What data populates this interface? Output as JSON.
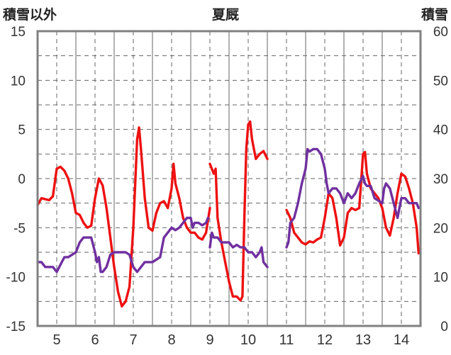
{
  "header": {
    "left_axis_title": "積雪以外",
    "center_title": "夏厩",
    "right_axis_title": "積雪"
  },
  "chart_data": {
    "type": "line",
    "title": "夏厩",
    "ylabel_left": "積雪以外",
    "ylabel_right": "積雪",
    "y_left_range": [
      -15,
      15
    ],
    "y_left_ticks": [
      15,
      10,
      5,
      0,
      -5,
      -10,
      -15
    ],
    "y_right_range": [
      0,
      60
    ],
    "y_right_ticks": [
      60,
      50,
      40,
      30,
      20,
      10,
      0
    ],
    "x_range": [
      4.5,
      14.5
    ],
    "x_ticks": [
      5,
      6,
      7,
      8,
      9,
      10,
      11,
      12,
      13,
      14
    ],
    "x_tick_labels": [
      "5",
      "6",
      "7",
      "8",
      "9",
      "10",
      "11",
      "12",
      "13",
      "14"
    ],
    "grid": true,
    "colors": {
      "red": "#ee1111",
      "purple": "#7030a0",
      "frame": "#808080",
      "grid": "#666666"
    },
    "series": [
      {
        "axis": "left",
        "color": "#ee1111",
        "segments": [
          [
            [
              4.5,
              -2.7
            ],
            [
              4.6,
              -2.0
            ],
            [
              4.8,
              -2.2
            ],
            [
              4.9,
              -1.8
            ],
            [
              5.0,
              1.0
            ],
            [
              5.1,
              1.2
            ],
            [
              5.2,
              0.8
            ],
            [
              5.3,
              0.0
            ],
            [
              5.4,
              -1.5
            ],
            [
              5.5,
              -3.5
            ],
            [
              5.6,
              -3.7
            ],
            [
              5.7,
              -4.5
            ],
            [
              5.8,
              -5.0
            ],
            [
              5.9,
              -4.8
            ],
            [
              6.0,
              -2.0
            ],
            [
              6.1,
              0.0
            ],
            [
              6.2,
              -0.7
            ],
            [
              6.3,
              -3.0
            ],
            [
              6.4,
              -6.0
            ],
            [
              6.5,
              -9.0
            ],
            [
              6.6,
              -11.5
            ],
            [
              6.7,
              -13.0
            ],
            [
              6.8,
              -12.5
            ],
            [
              6.9,
              -11.0
            ],
            [
              7.0,
              -5.0
            ],
            [
              7.1,
              4.0
            ],
            [
              7.15,
              5.2
            ],
            [
              7.2,
              3.0
            ],
            [
              7.3,
              -2.0
            ],
            [
              7.4,
              -5.0
            ],
            [
              7.5,
              -5.3
            ],
            [
              7.6,
              -3.5
            ],
            [
              7.7,
              -2.5
            ],
            [
              7.8,
              -2.3
            ],
            [
              7.9,
              -3.0
            ],
            [
              8.0,
              -1.0
            ],
            [
              8.05,
              1.5
            ],
            [
              8.1,
              -0.5
            ],
            [
              8.2,
              -2.0
            ],
            [
              8.3,
              -4.0
            ],
            [
              8.4,
              -5.0
            ],
            [
              8.5,
              -5.5
            ],
            [
              8.6,
              -5.5
            ],
            [
              8.7,
              -6.0
            ],
            [
              8.8,
              -6.2
            ],
            [
              8.9,
              -5.5
            ],
            [
              9.0,
              -3.0
            ]
          ],
          [
            [
              9.0,
              1.5
            ],
            [
              9.05,
              1.0
            ],
            [
              9.1,
              0.5
            ],
            [
              9.15,
              1.0
            ],
            [
              9.2,
              -4.0
            ],
            [
              9.3,
              -6.5
            ],
            [
              9.4,
              -8.5
            ],
            [
              9.5,
              -10.5
            ],
            [
              9.6,
              -12.0
            ],
            [
              9.7,
              -12.0
            ],
            [
              9.8,
              -12.4
            ],
            [
              9.85,
              -12.0
            ],
            [
              9.9,
              -4.0
            ],
            [
              9.95,
              3.0
            ],
            [
              10.0,
              5.5
            ],
            [
              10.05,
              5.8
            ],
            [
              10.1,
              4.0
            ],
            [
              10.2,
              2.0
            ],
            [
              10.3,
              2.5
            ],
            [
              10.4,
              2.8
            ],
            [
              10.5,
              2.0
            ]
          ],
          [
            [
              11.0,
              -3.2
            ],
            [
              11.1,
              -4.0
            ],
            [
              11.2,
              -5.5
            ],
            [
              11.3,
              -6.0
            ],
            [
              11.4,
              -6.5
            ],
            [
              11.5,
              -6.7
            ],
            [
              11.6,
              -6.4
            ],
            [
              11.7,
              -6.5
            ],
            [
              11.8,
              -6.2
            ],
            [
              11.9,
              -6.0
            ],
            [
              12.0,
              -4.0
            ],
            [
              12.1,
              -1.5
            ],
            [
              12.2,
              -2.0
            ],
            [
              12.3,
              -4.0
            ],
            [
              12.4,
              -6.8
            ],
            [
              12.5,
              -6.0
            ],
            [
              12.6,
              -3.5
            ],
            [
              12.7,
              -3.0
            ],
            [
              12.8,
              -3.2
            ],
            [
              12.9,
              -3.0
            ],
            [
              13.0,
              2.5
            ],
            [
              13.05,
              2.7
            ],
            [
              13.1,
              0.5
            ],
            [
              13.2,
              -1.0
            ],
            [
              13.3,
              -1.5
            ],
            [
              13.4,
              -2.0
            ],
            [
              13.5,
              -3.0
            ],
            [
              13.6,
              -5.0
            ],
            [
              13.7,
              -5.8
            ],
            [
              13.8,
              -4.0
            ],
            [
              13.9,
              -1.5
            ],
            [
              14.0,
              0.5
            ],
            [
              14.1,
              0.2
            ],
            [
              14.2,
              -1.0
            ],
            [
              14.3,
              -2.5
            ],
            [
              14.4,
              -5.0
            ],
            [
              14.45,
              -7.6
            ]
          ]
        ]
      },
      {
        "axis": "right",
        "color": "#7030a0",
        "segments": [
          [
            [
              4.5,
              13.0
            ],
            [
              4.6,
              13.0
            ],
            [
              4.7,
              12.0
            ],
            [
              4.8,
              12.0
            ],
            [
              4.9,
              12.0
            ],
            [
              5.0,
              11.0
            ],
            [
              5.1,
              12.5
            ],
            [
              5.2,
              14.0
            ],
            [
              5.3,
              14.0
            ],
            [
              5.4,
              14.5
            ],
            [
              5.5,
              15.0
            ],
            [
              5.6,
              17.0
            ],
            [
              5.7,
              18.0
            ],
            [
              5.8,
              18.0
            ],
            [
              5.9,
              18.0
            ],
            [
              6.0,
              15.0
            ],
            [
              6.05,
              13.0
            ],
            [
              6.1,
              14.0
            ],
            [
              6.15,
              11.0
            ],
            [
              6.2,
              11.0
            ],
            [
              6.3,
              12.0
            ],
            [
              6.4,
              14.5
            ],
            [
              6.5,
              15.0
            ],
            [
              6.6,
              15.0
            ],
            [
              6.7,
              15.0
            ],
            [
              6.8,
              15.0
            ],
            [
              6.9,
              14.5
            ],
            [
              7.0,
              12.0
            ],
            [
              7.1,
              11.0
            ],
            [
              7.2,
              12.0
            ],
            [
              7.3,
              13.0
            ],
            [
              7.4,
              13.0
            ],
            [
              7.5,
              13.0
            ],
            [
              7.6,
              13.5
            ],
            [
              7.7,
              14.0
            ],
            [
              7.8,
              18.0
            ],
            [
              7.9,
              19.0
            ],
            [
              8.0,
              20.0
            ],
            [
              8.1,
              19.5
            ],
            [
              8.2,
              20.0
            ],
            [
              8.3,
              21.0
            ],
            [
              8.4,
              22.0
            ],
            [
              8.5,
              22.0
            ],
            [
              8.55,
              20.0
            ],
            [
              8.6,
              21.0
            ],
            [
              8.7,
              21.0
            ],
            [
              8.8,
              20.5
            ],
            [
              8.9,
              21.0
            ],
            [
              8.95,
              22.0
            ]
          ],
          [
            [
              9.0,
              16.0
            ],
            [
              9.05,
              19.0
            ],
            [
              9.1,
              18.0
            ],
            [
              9.2,
              18.0
            ],
            [
              9.3,
              17.0
            ],
            [
              9.4,
              17.0
            ],
            [
              9.5,
              17.0
            ],
            [
              9.6,
              16.0
            ],
            [
              9.7,
              16.5
            ],
            [
              9.8,
              16.0
            ],
            [
              9.9,
              16.0
            ],
            [
              10.0,
              15.0
            ],
            [
              10.1,
              15.0
            ],
            [
              10.2,
              14.0
            ],
            [
              10.3,
              15.0
            ],
            [
              10.35,
              16.0
            ],
            [
              10.4,
              13.0
            ],
            [
              10.5,
              12.0
            ]
          ],
          [
            [
              11.0,
              16.0
            ],
            [
              11.05,
              17.0
            ],
            [
              11.1,
              21.0
            ],
            [
              11.2,
              22.0
            ],
            [
              11.3,
              25.0
            ],
            [
              11.4,
              29.0
            ],
            [
              11.5,
              32.0
            ],
            [
              11.55,
              36.0
            ],
            [
              11.6,
              35.5
            ],
            [
              11.7,
              36.0
            ],
            [
              11.8,
              36.0
            ],
            [
              11.9,
              35.0
            ],
            [
              12.0,
              32.0
            ],
            [
              12.05,
              29.0
            ],
            [
              12.1,
              27.0
            ],
            [
              12.2,
              28.0
            ],
            [
              12.3,
              28.0
            ],
            [
              12.4,
              27.0
            ],
            [
              12.5,
              25.0
            ],
            [
              12.6,
              27.0
            ],
            [
              12.7,
              26.0
            ],
            [
              12.8,
              27.0
            ],
            [
              12.9,
              29.0
            ],
            [
              13.0,
              30.5
            ],
            [
              13.05,
              29.0
            ],
            [
              13.1,
              28.5
            ],
            [
              13.2,
              28.5
            ],
            [
              13.3,
              26.0
            ],
            [
              13.4,
              25.5
            ],
            [
              13.5,
              25.0
            ],
            [
              13.55,
              28.0
            ],
            [
              13.6,
              29.0
            ],
            [
              13.7,
              28.0
            ],
            [
              13.8,
              25.0
            ],
            [
              13.9,
              22.0
            ],
            [
              14.0,
              26.0
            ],
            [
              14.1,
              26.0
            ],
            [
              14.2,
              25.0
            ],
            [
              14.3,
              25.0
            ],
            [
              14.4,
              25.0
            ],
            [
              14.45,
              24.0
            ]
          ]
        ]
      }
    ]
  }
}
